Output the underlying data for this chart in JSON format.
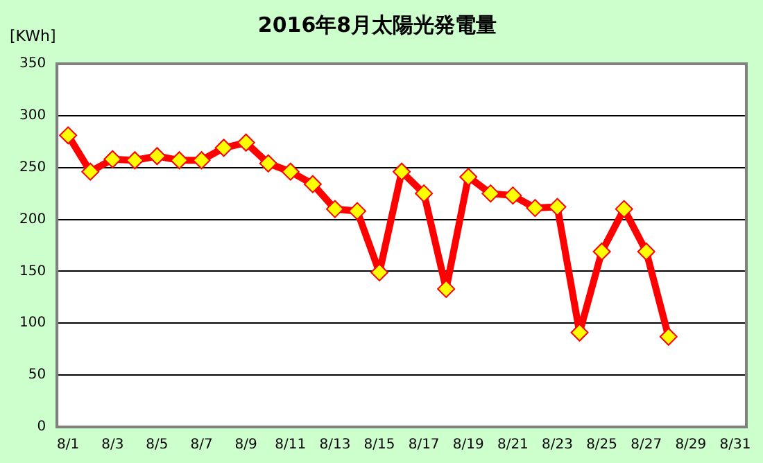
{
  "chart_data": {
    "type": "line",
    "title": "2016年8月太陽光発電量",
    "ylabel": "[KWh]",
    "categories": [
      "8/1",
      null,
      "8/3",
      null,
      "8/5",
      null,
      "8/7",
      null,
      "8/9",
      null,
      "8/11",
      null,
      "8/13",
      null,
      "8/15",
      null,
      "8/17",
      null,
      "8/19",
      null,
      "8/21",
      null,
      "8/23",
      null,
      "8/25",
      null,
      "8/27",
      null,
      "8/29",
      null,
      "8/31"
    ],
    "series": [
      {
        "color": "#ff0000",
        "values": [
          281,
          246,
          258,
          257,
          261,
          257,
          257,
          269,
          274,
          254,
          246,
          234,
          210,
          208,
          149,
          246,
          225,
          133,
          241,
          225,
          223,
          211,
          212,
          91,
          169,
          210,
          169,
          87,
          null,
          null,
          null
        ]
      }
    ],
    "ylim": [
      0,
      350
    ],
    "yticks": [
      0,
      50,
      100,
      150,
      200,
      250,
      300,
      350
    ],
    "grid": "y",
    "legend": false,
    "marker": "diamond",
    "line_style": "solid"
  }
}
